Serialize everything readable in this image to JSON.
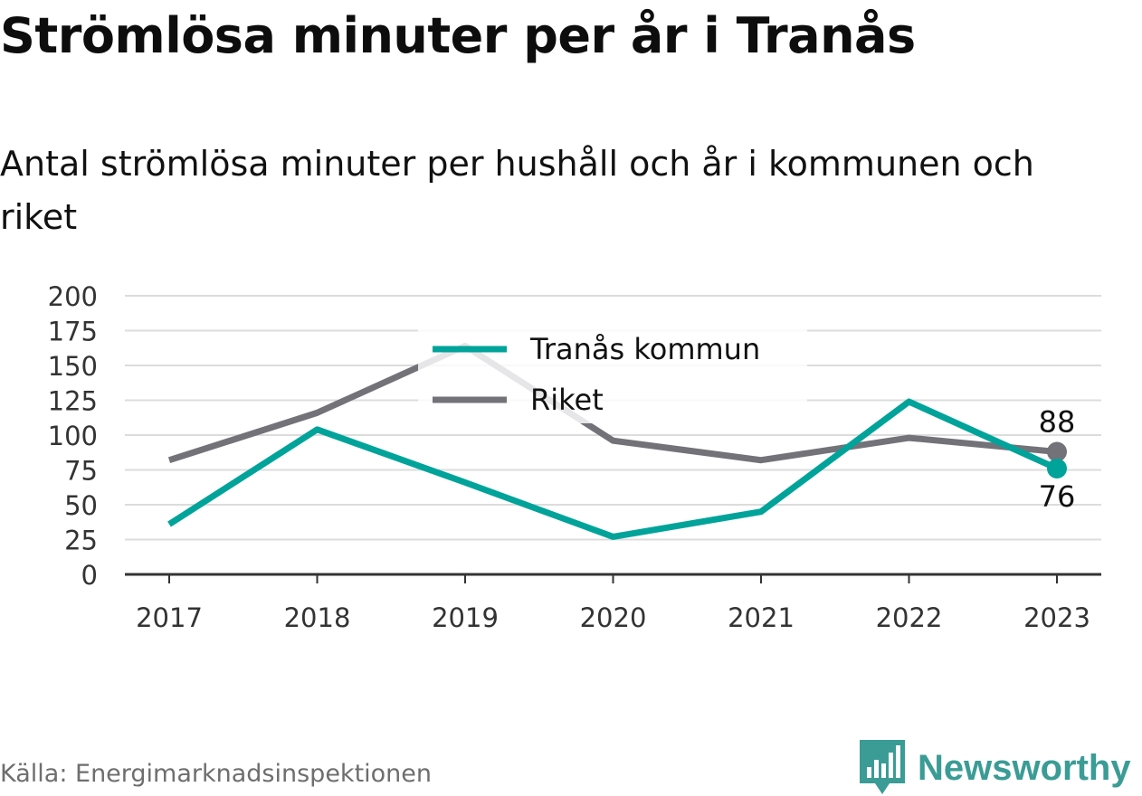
{
  "title": "Strömlösa minuter per år i Tranås",
  "subtitle": "Antal strömlösa minuter per hushåll och år i kommunen och riket",
  "source": "Källa: Energimarknadsinspektionen",
  "logo": {
    "text": "Newsworthy",
    "icon": "newsworthy-logo-icon",
    "color": "#3a9c95"
  },
  "chart_data": {
    "type": "line",
    "x": [
      "2017",
      "2018",
      "2019",
      "2020",
      "2021",
      "2022",
      "2023"
    ],
    "ylim": [
      0,
      200
    ],
    "yticks": [
      0,
      25,
      50,
      75,
      100,
      125,
      150,
      175,
      200
    ],
    "grid": true,
    "legend_position": "top-center",
    "series": [
      {
        "name": "Tranås kommun",
        "color": "#00a39a",
        "values": [
          36,
          104,
          66,
          27,
          45,
          124,
          76
        ],
        "end_label": "76"
      },
      {
        "name": "Riket",
        "color": "#737278",
        "values": [
          82,
          116,
          164,
          96,
          82,
          98,
          88
        ],
        "end_label": "88"
      }
    ]
  }
}
